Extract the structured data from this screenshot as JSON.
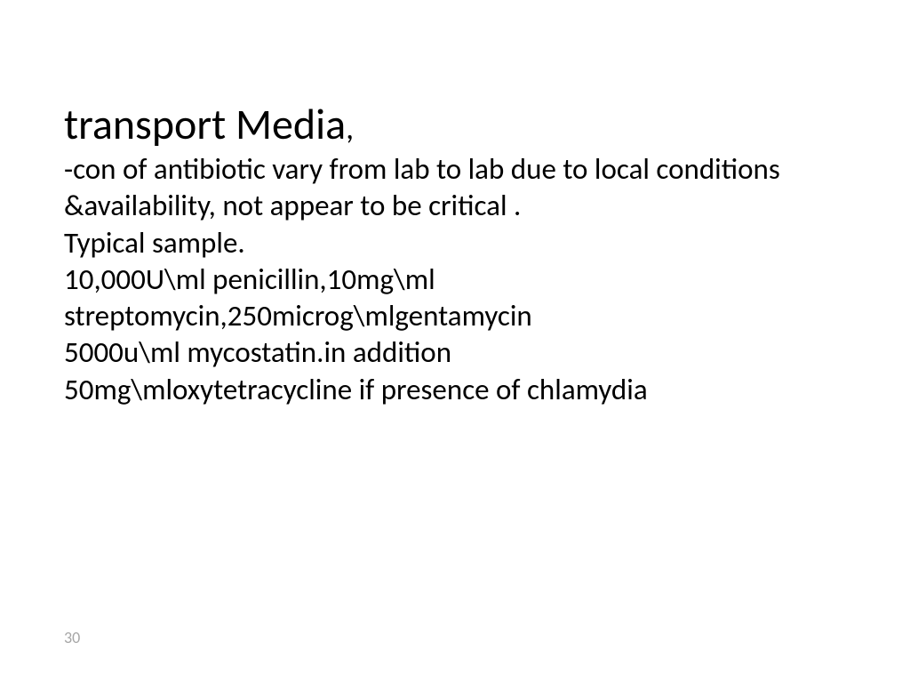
{
  "slide": {
    "title": "transport Media",
    "title_fontsize": 48,
    "comma": ",",
    "body_lines": [
      "-con of antibiotic vary from lab to lab due to local conditions &availability, not appear to be critical .",
      "Typical sample.",
      "10,000U\\ml penicillin,10mg\\ml streptomycin,250microg\\mlgentamycin",
      "5000u\\ml mycostatin.in addition",
      "50mg\\mloxytetracycline if presence of chlamydia"
    ],
    "body_fontsize": 33,
    "page_number": "30",
    "background_color": "#ffffff",
    "text_color": "#000000",
    "page_number_color": "#a6a6a6",
    "font_family": "Calibri"
  }
}
